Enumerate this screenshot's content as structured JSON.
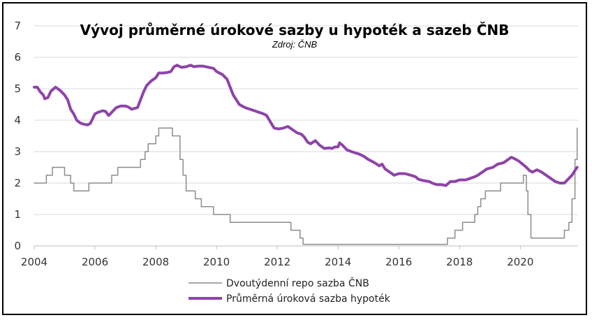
{
  "chart_data": {
    "type": "line",
    "title": "Vývoj průměrné úrokové sazby u hypoték a sazeb ČNB",
    "subtitle": "Zdroj: ČNB",
    "xlabel": "",
    "ylabel": "",
    "xlim": [
      2004,
      2021.9
    ],
    "ylim": [
      0,
      7
    ],
    "x_ticks": [
      "2004",
      "2006",
      "2008",
      "2010",
      "2012",
      "2014",
      "2016",
      "2018",
      "2020"
    ],
    "y_ticks": [
      "0",
      "1",
      "2",
      "3",
      "4",
      "5",
      "6",
      "7"
    ],
    "grid": "horizontal",
    "legend_position": "bottom",
    "series": [
      {
        "name": "Dvoutýdenní repo sazba ČNB",
        "color": "#8c8c8c",
        "style": "step",
        "points": [
          [
            2004.0,
            2.0
          ],
          [
            2004.4,
            2.0
          ],
          [
            2004.4,
            2.25
          ],
          [
            2004.6,
            2.25
          ],
          [
            2004.6,
            2.5
          ],
          [
            2005.0,
            2.5
          ],
          [
            2005.0,
            2.25
          ],
          [
            2005.2,
            2.25
          ],
          [
            2005.2,
            2.0
          ],
          [
            2005.3,
            2.0
          ],
          [
            2005.3,
            1.75
          ],
          [
            2005.8,
            1.75
          ],
          [
            2005.8,
            2.0
          ],
          [
            2006.55,
            2.0
          ],
          [
            2006.55,
            2.25
          ],
          [
            2006.75,
            2.25
          ],
          [
            2006.75,
            2.5
          ],
          [
            2007.5,
            2.5
          ],
          [
            2007.5,
            2.75
          ],
          [
            2007.65,
            2.75
          ],
          [
            2007.65,
            3.0
          ],
          [
            2007.75,
            3.0
          ],
          [
            2007.75,
            3.25
          ],
          [
            2008.0,
            3.25
          ],
          [
            2008.0,
            3.5
          ],
          [
            2008.1,
            3.5
          ],
          [
            2008.1,
            3.75
          ],
          [
            2008.55,
            3.75
          ],
          [
            2008.55,
            3.5
          ],
          [
            2008.8,
            3.5
          ],
          [
            2008.8,
            2.75
          ],
          [
            2008.9,
            2.75
          ],
          [
            2008.9,
            2.25
          ],
          [
            2009.0,
            2.25
          ],
          [
            2009.0,
            1.75
          ],
          [
            2009.3,
            1.75
          ],
          [
            2009.3,
            1.5
          ],
          [
            2009.5,
            1.5
          ],
          [
            2009.5,
            1.25
          ],
          [
            2009.9,
            1.25
          ],
          [
            2009.9,
            1.0
          ],
          [
            2010.45,
            1.0
          ],
          [
            2010.45,
            0.75
          ],
          [
            2012.45,
            0.75
          ],
          [
            2012.45,
            0.5
          ],
          [
            2012.75,
            0.5
          ],
          [
            2012.75,
            0.25
          ],
          [
            2012.85,
            0.25
          ],
          [
            2012.85,
            0.05
          ],
          [
            2017.6,
            0.05
          ],
          [
            2017.6,
            0.25
          ],
          [
            2017.85,
            0.25
          ],
          [
            2017.85,
            0.5
          ],
          [
            2018.1,
            0.5
          ],
          [
            2018.1,
            0.75
          ],
          [
            2018.5,
            0.75
          ],
          [
            2018.5,
            1.0
          ],
          [
            2018.6,
            1.0
          ],
          [
            2018.6,
            1.25
          ],
          [
            2018.7,
            1.25
          ],
          [
            2018.7,
            1.5
          ],
          [
            2018.85,
            1.5
          ],
          [
            2018.85,
            1.75
          ],
          [
            2019.35,
            1.75
          ],
          [
            2019.35,
            2.0
          ],
          [
            2020.1,
            2.0
          ],
          [
            2020.1,
            2.25
          ],
          [
            2020.2,
            2.25
          ],
          [
            2020.2,
            1.75
          ],
          [
            2020.25,
            1.75
          ],
          [
            2020.25,
            1.0
          ],
          [
            2020.35,
            1.0
          ],
          [
            2020.35,
            0.25
          ],
          [
            2021.45,
            0.25
          ],
          [
            2021.45,
            0.5
          ],
          [
            2021.6,
            0.5
          ],
          [
            2021.6,
            0.75
          ],
          [
            2021.7,
            0.75
          ],
          [
            2021.7,
            1.5
          ],
          [
            2021.8,
            1.5
          ],
          [
            2021.8,
            2.75
          ],
          [
            2021.87,
            2.75
          ],
          [
            2021.87,
            3.75
          ]
        ]
      },
      {
        "name": "Průměrná úroková sazba hypoték",
        "color": "#8e44a8",
        "style": "line",
        "points": [
          [
            2004.0,
            5.05
          ],
          [
            2004.1,
            5.05
          ],
          [
            2004.2,
            4.9
          ],
          [
            2004.3,
            4.8
          ],
          [
            2004.35,
            4.68
          ],
          [
            2004.45,
            4.72
          ],
          [
            2004.55,
            4.92
          ],
          [
            2004.7,
            5.05
          ],
          [
            2004.85,
            4.95
          ],
          [
            2005.0,
            4.8
          ],
          [
            2005.1,
            4.65
          ],
          [
            2005.2,
            4.35
          ],
          [
            2005.3,
            4.2
          ],
          [
            2005.4,
            4.0
          ],
          [
            2005.5,
            3.92
          ],
          [
            2005.6,
            3.88
          ],
          [
            2005.75,
            3.85
          ],
          [
            2005.85,
            3.9
          ],
          [
            2006.0,
            4.2
          ],
          [
            2006.1,
            4.25
          ],
          [
            2006.25,
            4.3
          ],
          [
            2006.35,
            4.28
          ],
          [
            2006.45,
            4.15
          ],
          [
            2006.55,
            4.25
          ],
          [
            2006.7,
            4.4
          ],
          [
            2006.85,
            4.45
          ],
          [
            2007.0,
            4.45
          ],
          [
            2007.1,
            4.42
          ],
          [
            2007.2,
            4.35
          ],
          [
            2007.4,
            4.4
          ],
          [
            2007.5,
            4.65
          ],
          [
            2007.6,
            4.9
          ],
          [
            2007.7,
            5.1
          ],
          [
            2007.85,
            5.25
          ],
          [
            2008.0,
            5.35
          ],
          [
            2008.1,
            5.5
          ],
          [
            2008.25,
            5.5
          ],
          [
            2008.4,
            5.52
          ],
          [
            2008.5,
            5.55
          ],
          [
            2008.6,
            5.7
          ],
          [
            2008.7,
            5.75
          ],
          [
            2008.85,
            5.68
          ],
          [
            2009.0,
            5.7
          ],
          [
            2009.15,
            5.75
          ],
          [
            2009.25,
            5.7
          ],
          [
            2009.4,
            5.72
          ],
          [
            2009.55,
            5.72
          ],
          [
            2009.75,
            5.68
          ],
          [
            2009.9,
            5.65
          ],
          [
            2010.0,
            5.55
          ],
          [
            2010.2,
            5.45
          ],
          [
            2010.35,
            5.3
          ],
          [
            2010.45,
            5.05
          ],
          [
            2010.55,
            4.8
          ],
          [
            2010.65,
            4.65
          ],
          [
            2010.75,
            4.5
          ],
          [
            2010.9,
            4.42
          ],
          [
            2011.0,
            4.38
          ],
          [
            2011.1,
            4.35
          ],
          [
            2011.25,
            4.3
          ],
          [
            2011.4,
            4.25
          ],
          [
            2011.55,
            4.2
          ],
          [
            2011.65,
            4.15
          ],
          [
            2011.8,
            3.9
          ],
          [
            2011.9,
            3.75
          ],
          [
            2012.05,
            3.72
          ],
          [
            2012.2,
            3.75
          ],
          [
            2012.35,
            3.8
          ],
          [
            2012.5,
            3.7
          ],
          [
            2012.65,
            3.6
          ],
          [
            2012.8,
            3.55
          ],
          [
            2012.9,
            3.45
          ],
          [
            2013.0,
            3.3
          ],
          [
            2013.1,
            3.25
          ],
          [
            2013.25,
            3.35
          ],
          [
            2013.4,
            3.2
          ],
          [
            2013.55,
            3.1
          ],
          [
            2013.7,
            3.12
          ],
          [
            2013.8,
            3.1
          ],
          [
            2013.9,
            3.15
          ],
          [
            2014.0,
            3.15
          ],
          [
            2014.05,
            3.28
          ],
          [
            2014.15,
            3.2
          ],
          [
            2014.3,
            3.05
          ],
          [
            2014.5,
            2.98
          ],
          [
            2014.7,
            2.92
          ],
          [
            2014.85,
            2.85
          ],
          [
            2015.0,
            2.75
          ],
          [
            2015.1,
            2.7
          ],
          [
            2015.25,
            2.62
          ],
          [
            2015.35,
            2.55
          ],
          [
            2015.45,
            2.6
          ],
          [
            2015.55,
            2.45
          ],
          [
            2015.7,
            2.35
          ],
          [
            2015.85,
            2.25
          ],
          [
            2016.0,
            2.3
          ],
          [
            2016.2,
            2.3
          ],
          [
            2016.4,
            2.25
          ],
          [
            2016.55,
            2.2
          ],
          [
            2016.65,
            2.12
          ],
          [
            2016.8,
            2.08
          ],
          [
            2017.0,
            2.05
          ],
          [
            2017.1,
            2.0
          ],
          [
            2017.25,
            1.95
          ],
          [
            2017.4,
            1.95
          ],
          [
            2017.55,
            1.92
          ],
          [
            2017.7,
            2.05
          ],
          [
            2017.85,
            2.05
          ],
          [
            2018.0,
            2.1
          ],
          [
            2018.2,
            2.1
          ],
          [
            2018.35,
            2.15
          ],
          [
            2018.5,
            2.2
          ],
          [
            2018.6,
            2.25
          ],
          [
            2018.75,
            2.35
          ],
          [
            2018.9,
            2.45
          ],
          [
            2019.1,
            2.5
          ],
          [
            2019.25,
            2.6
          ],
          [
            2019.45,
            2.65
          ],
          [
            2019.6,
            2.75
          ],
          [
            2019.7,
            2.82
          ],
          [
            2019.8,
            2.78
          ],
          [
            2019.95,
            2.7
          ],
          [
            2020.1,
            2.58
          ],
          [
            2020.2,
            2.5
          ],
          [
            2020.3,
            2.4
          ],
          [
            2020.4,
            2.35
          ],
          [
            2020.55,
            2.42
          ],
          [
            2020.7,
            2.35
          ],
          [
            2020.85,
            2.25
          ],
          [
            2021.0,
            2.15
          ],
          [
            2021.15,
            2.05
          ],
          [
            2021.3,
            2.0
          ],
          [
            2021.45,
            2.0
          ],
          [
            2021.55,
            2.1
          ],
          [
            2021.7,
            2.25
          ],
          [
            2021.8,
            2.4
          ],
          [
            2021.87,
            2.5
          ]
        ]
      }
    ]
  }
}
